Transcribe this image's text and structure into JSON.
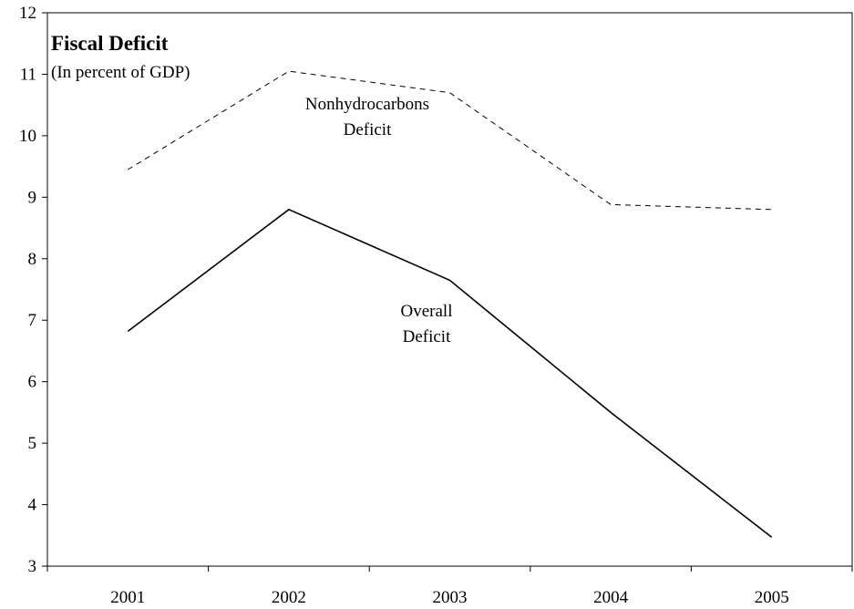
{
  "chart_data": {
    "type": "line",
    "title": "Fiscal Deficit",
    "subtitle": "(In percent of GDP)",
    "categories": [
      "2001",
      "2002",
      "2003",
      "2004",
      "2005"
    ],
    "ylim": [
      3,
      12
    ],
    "yticks": [
      3,
      4,
      5,
      6,
      7,
      8,
      9,
      10,
      11,
      12
    ],
    "grid": false,
    "legend": "none",
    "series": [
      {
        "name": "Nonhydrocarbons Deficit",
        "label_lines": [
          "Nonhydrocarbons",
          "Deficit"
        ],
        "values": [
          9.45,
          11.05,
          10.7,
          8.88,
          8.8
        ],
        "style": "dashed",
        "color": "#000000"
      },
      {
        "name": "Overall Deficit",
        "label_lines": [
          "Overall",
          "Deficit"
        ],
        "values": [
          6.82,
          8.8,
          7.65,
          5.5,
          3.47
        ],
        "style": "solid",
        "color": "#000000"
      }
    ]
  }
}
